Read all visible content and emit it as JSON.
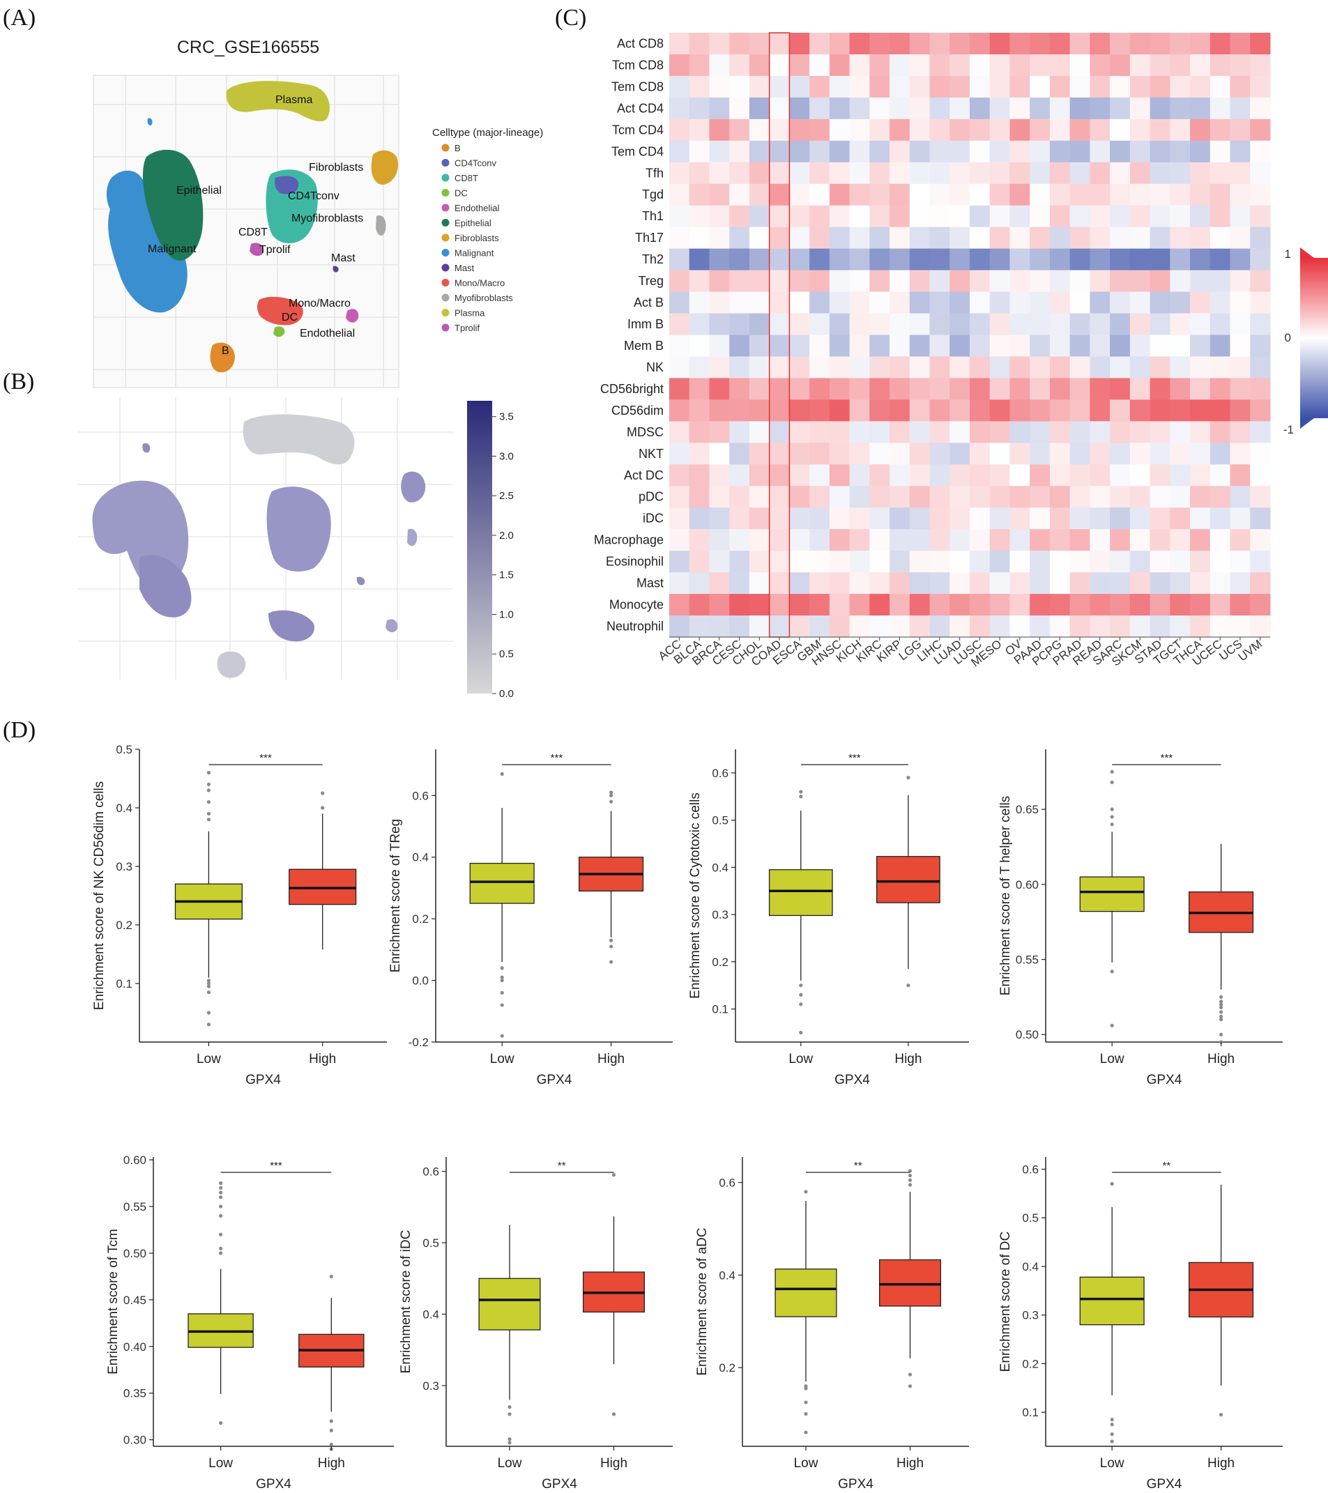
{
  "panel_labels": [
    "(A)",
    "(B)",
    "(C)",
    "(D)"
  ],
  "panel_a": {
    "title": "CRC_GSE166555",
    "legend_title": "Celltype (major-lineage)",
    "legend": [
      {
        "label": "B",
        "color": "#e08a2b"
      },
      {
        "label": "CD4Tconv",
        "color": "#5a5fb5"
      },
      {
        "label": "CD8T",
        "color": "#3fb8a3"
      },
      {
        "label": "DC",
        "color": "#7fc241"
      },
      {
        "label": "Endothelial",
        "color": "#c65bb5"
      },
      {
        "label": "Epithelial",
        "color": "#1f7a5a"
      },
      {
        "label": "Fibroblasts",
        "color": "#d9a22a"
      },
      {
        "label": "Malignant",
        "color": "#3a8fd0"
      },
      {
        "label": "Mast",
        "color": "#5b3f9a"
      },
      {
        "label": "Mono/Macro",
        "color": "#e8554c"
      },
      {
        "label": "Myofibroblasts",
        "color": "#a8aaa2"
      },
      {
        "label": "Plasma",
        "color": "#c2c33a"
      },
      {
        "label": "Tprolif",
        "color": "#b95ab0"
      }
    ],
    "cluster_labels": [
      "Plasma",
      "Fibroblasts",
      "Epithelial",
      "CD4Tconv",
      "Myofibroblasts",
      "CD8T",
      "Tprolif",
      "Malignant",
      "Mast",
      "Mono/Macro",
      "DC",
      "Endothelial",
      "B"
    ]
  },
  "panel_b": {
    "colorbar_ticks": [
      "3.5",
      "3.0",
      "2.5",
      "2.0",
      "1.5",
      "1.0",
      "0.5",
      "0.0"
    ],
    "colorbar_max": 3.7
  },
  "panel_c": {
    "legend_ticks": [
      "1",
      "0",
      "-1"
    ],
    "rows": [
      "Act CD8",
      "Tcm CD8",
      "Tem CD8",
      "Act CD4",
      "Tcm CD4",
      "Tem CD4",
      "Tfh",
      "Tgd",
      "Th1",
      "Th17",
      "Th2",
      "Treg",
      "Act B",
      "Imm B",
      "Mem B",
      "NK",
      "CD56bright",
      "CD56dim",
      "MDSC",
      "NKT",
      "Act DC",
      "pDC",
      "iDC",
      "Macrophage",
      "Eosinophil",
      "Mast",
      "Monocyte",
      "Neutrophil"
    ],
    "cols": [
      "ACC",
      "BLCA",
      "BRCA",
      "CESC",
      "CHOL",
      "COAD",
      "ESCA",
      "GBM",
      "HNSC",
      "KICH",
      "KIRC",
      "KIRP",
      "LGG",
      "LIHC",
      "LUAD",
      "LUSC",
      "MESO",
      "OV",
      "PAAD",
      "PCPG",
      "PRAD",
      "READ",
      "SARC",
      "SKCM",
      "STAD",
      "TGCT",
      "THCA",
      "UCEC",
      "UCS",
      "UVM"
    ],
    "highlight_col": "COAD"
  },
  "chart_data": [
    {
      "type": "box",
      "ylabel": "Enrichment score of NK CD56dim cells",
      "xlabel": "GPX4",
      "categories": [
        "Low",
        "High"
      ],
      "ylim": [
        0.0,
        0.5
      ],
      "ticks": [
        "0.1",
        "0.2",
        "0.3",
        "0.4",
        "0.5"
      ],
      "sig": "***",
      "boxes": [
        {
          "q1": 0.21,
          "med": 0.24,
          "q3": 0.27,
          "wlo": 0.11,
          "whi": 0.36,
          "out": [
            0.03,
            0.05,
            0.085,
            0.095,
            0.1,
            0.105,
            0.38,
            0.39,
            0.41,
            0.43,
            0.44,
            0.46
          ]
        },
        {
          "q1": 0.235,
          "med": 0.263,
          "q3": 0.295,
          "wlo": 0.158,
          "whi": 0.39,
          "out": [
            0.4,
            0.425
          ]
        }
      ]
    },
    {
      "type": "box",
      "ylabel": "Enrichment score of TReg",
      "xlabel": "GPX4",
      "categories": [
        "Low",
        "High"
      ],
      "ylim": [
        -0.2,
        0.75
      ],
      "ticks": [
        "-0.2",
        "0.0",
        "0.2",
        "0.4",
        "0.6"
      ],
      "sig": "***",
      "boxes": [
        {
          "q1": 0.25,
          "med": 0.32,
          "q3": 0.38,
          "wlo": 0.06,
          "whi": 0.56,
          "out": [
            -0.18,
            -0.08,
            -0.04,
            0.0,
            0.01,
            0.04,
            0.67
          ]
        },
        {
          "q1": 0.29,
          "med": 0.345,
          "q3": 0.4,
          "wlo": 0.14,
          "whi": 0.55,
          "out": [
            0.06,
            0.11,
            0.13,
            0.58,
            0.6,
            0.61
          ]
        }
      ]
    },
    {
      "type": "box",
      "ylabel": "Enrichment score of Cytotoxic cells",
      "xlabel": "GPX4",
      "categories": [
        "Low",
        "High"
      ],
      "ylim": [
        0.03,
        0.65
      ],
      "ticks": [
        "0.1",
        "0.2",
        "0.3",
        "0.4",
        "0.5",
        "0.6"
      ],
      "sig": "***",
      "boxes": [
        {
          "q1": 0.298,
          "med": 0.35,
          "q3": 0.395,
          "wlo": 0.16,
          "whi": 0.52,
          "out": [
            0.05,
            0.11,
            0.13,
            0.15,
            0.55,
            0.56
          ]
        },
        {
          "q1": 0.325,
          "med": 0.37,
          "q3": 0.423,
          "wlo": 0.185,
          "whi": 0.553,
          "out": [
            0.15,
            0.59
          ]
        }
      ]
    },
    {
      "type": "box",
      "ylabel": "Enrichment score of T helper cells",
      "xlabel": "GPX4",
      "categories": [
        "Low",
        "High"
      ],
      "ylim": [
        0.495,
        0.69
      ],
      "ticks": [
        "0.50",
        "0.55",
        "0.60",
        "0.65"
      ],
      "sig": "***",
      "boxes": [
        {
          "q1": 0.582,
          "med": 0.595,
          "q3": 0.605,
          "wlo": 0.548,
          "whi": 0.635,
          "out": [
            0.506,
            0.542,
            0.64,
            0.645,
            0.65,
            0.668,
            0.675
          ]
        },
        {
          "q1": 0.568,
          "med": 0.581,
          "q3": 0.595,
          "wlo": 0.53,
          "whi": 0.627,
          "out": [
            0.495,
            0.5,
            0.51,
            0.512,
            0.515,
            0.518,
            0.52,
            0.522,
            0.525
          ]
        }
      ]
    },
    {
      "type": "box",
      "ylabel": "Enrichment score of Tcm",
      "xlabel": "GPX4",
      "categories": [
        "Low",
        "High"
      ],
      "ylim": [
        0.293,
        0.603
      ],
      "ticks": [
        "0.30",
        "0.35",
        "0.40",
        "0.45",
        "0.50",
        "0.55",
        "0.60"
      ],
      "sig": "***",
      "boxes": [
        {
          "q1": 0.399,
          "med": 0.416,
          "q3": 0.435,
          "wlo": 0.349,
          "whi": 0.483,
          "out": [
            0.318,
            0.5,
            0.505,
            0.52,
            0.54,
            0.55,
            0.56,
            0.565,
            0.57,
            0.575
          ]
        },
        {
          "q1": 0.378,
          "med": 0.396,
          "q3": 0.413,
          "wlo": 0.33,
          "whi": 0.452,
          "out": [
            0.29,
            0.295,
            0.31,
            0.32,
            0.475
          ]
        }
      ]
    },
    {
      "type": "box",
      "ylabel": "Enrichment score of iDC",
      "xlabel": "GPX4",
      "categories": [
        "Low",
        "High"
      ],
      "ylim": [
        0.215,
        0.62
      ],
      "ticks": [
        "0.3",
        "0.4",
        "0.5",
        "0.6"
      ],
      "sig": "**",
      "boxes": [
        {
          "q1": 0.378,
          "med": 0.42,
          "q3": 0.45,
          "wlo": 0.28,
          "whi": 0.525,
          "out": [
            0.22,
            0.225,
            0.26,
            0.27
          ]
        },
        {
          "q1": 0.403,
          "med": 0.43,
          "q3": 0.459,
          "wlo": 0.33,
          "whi": 0.537,
          "out": [
            0.26,
            0.595
          ]
        }
      ]
    },
    {
      "type": "box",
      "ylabel": "Enrichment score of aDC",
      "xlabel": "GPX4",
      "categories": [
        "Low",
        "High"
      ],
      "ylim": [
        0.03,
        0.655
      ],
      "ticks": [
        "0.2",
        "0.4",
        "0.6"
      ],
      "sig": "**",
      "boxes": [
        {
          "q1": 0.31,
          "med": 0.37,
          "q3": 0.413,
          "wlo": 0.17,
          "whi": 0.56,
          "out": [
            0.06,
            0.1,
            0.125,
            0.155,
            0.16,
            0.58
          ]
        },
        {
          "q1": 0.333,
          "med": 0.38,
          "q3": 0.433,
          "wlo": 0.22,
          "whi": 0.58,
          "out": [
            0.16,
            0.185,
            0.595,
            0.605,
            0.615,
            0.625
          ]
        }
      ]
    },
    {
      "type": "box",
      "ylabel": "Enrichment score of DC",
      "xlabel": "GPX4",
      "categories": [
        "Low",
        "High"
      ],
      "ylim": [
        0.03,
        0.625
      ],
      "ticks": [
        "0.1",
        "0.2",
        "0.3",
        "0.4",
        "0.5",
        "0.6"
      ],
      "sig": "**",
      "boxes": [
        {
          "q1": 0.28,
          "med": 0.333,
          "q3": 0.378,
          "wlo": 0.135,
          "whi": 0.522,
          "out": [
            0.04,
            0.055,
            0.075,
            0.085,
            0.57
          ]
        },
        {
          "q1": 0.296,
          "med": 0.352,
          "q3": 0.408,
          "wlo": 0.155,
          "whi": 0.568,
          "out": [
            0.095
          ]
        }
      ]
    }
  ]
}
